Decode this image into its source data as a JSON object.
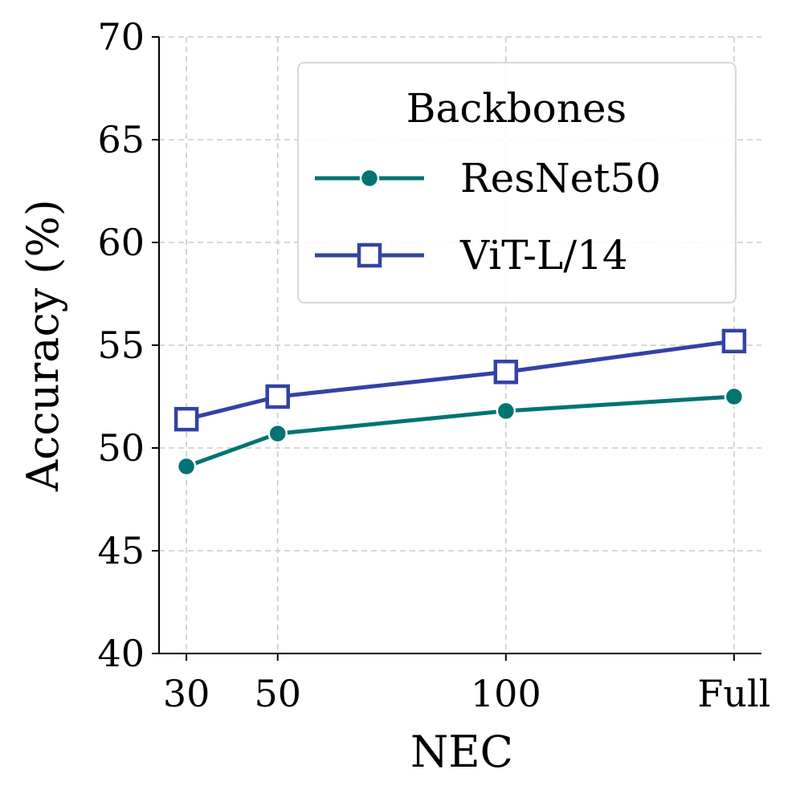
{
  "chart_data": {
    "type": "line",
    "categories": [
      "30",
      "50",
      "100",
      "Full"
    ],
    "x_positions": [
      30,
      50,
      100,
      150
    ],
    "xlim": [
      24,
      156
    ],
    "ylim": [
      40,
      70
    ],
    "yticks": [
      40,
      45,
      50,
      55,
      60,
      65,
      70
    ],
    "xlabel": "NEC",
    "ylabel": "Accuracy (%)",
    "grid": true,
    "legend": {
      "title": "Backbones",
      "placement": "top-right"
    },
    "series": [
      {
        "name": "ResNet50",
        "values": [
          49.1,
          50.7,
          51.8,
          52.5
        ],
        "color": "#007373",
        "marker": "circle"
      },
      {
        "name": "ViT-L/14",
        "values": [
          51.4,
          52.5,
          53.7,
          55.2
        ],
        "color": "#3342a8",
        "marker": "square-open"
      }
    ]
  }
}
